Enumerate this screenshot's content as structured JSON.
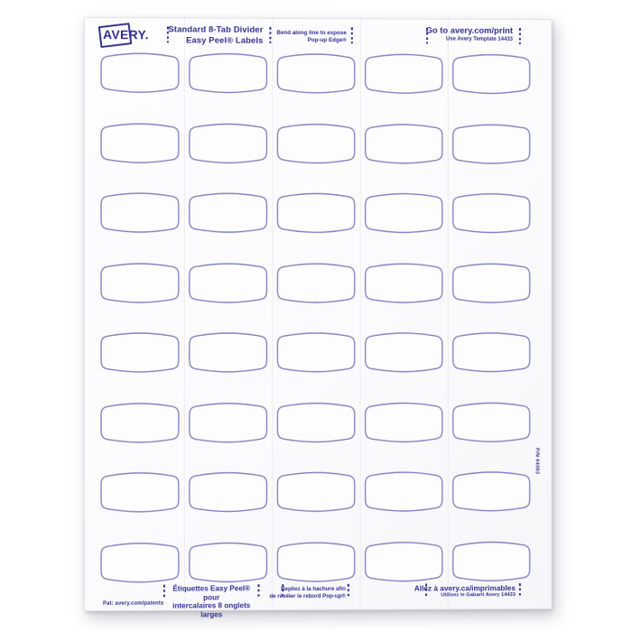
{
  "brand": {
    "logo": "AVERY."
  },
  "header": {
    "product": {
      "line1": "Standard 8-Tab Divider",
      "line2": "Easy Peel® Labels"
    },
    "bend": {
      "line1": "Bend along line to expose",
      "line2": "Pop-up Edge®"
    },
    "web": {
      "line1": "Go to avery.com/print",
      "line2": "Use Avery Template 14433"
    }
  },
  "footer": {
    "patent": "Pat: avery.com/patents",
    "product_fr": {
      "line1": "Étiquettes Easy Peel® pour",
      "line2": "intercalaires 8 onglets larges"
    },
    "bend_fr": {
      "line1": "Repliez à la hachure afin",
      "line2": "de révéler le rebord Pop-up®"
    },
    "web_fr": {
      "line1": "Allez à avery.ca/imprimables",
      "line2": "Utilisez le Gabarit Avery 14433"
    }
  },
  "side": {
    "part_number": "P/N 64083"
  },
  "grid": {
    "rows": 8,
    "columns": 5
  },
  "colors": {
    "ink": "#332f8e",
    "label_outline": "#8482bf",
    "label_fill": "#fdfdfe",
    "sheet": "#fcfcfd"
  }
}
